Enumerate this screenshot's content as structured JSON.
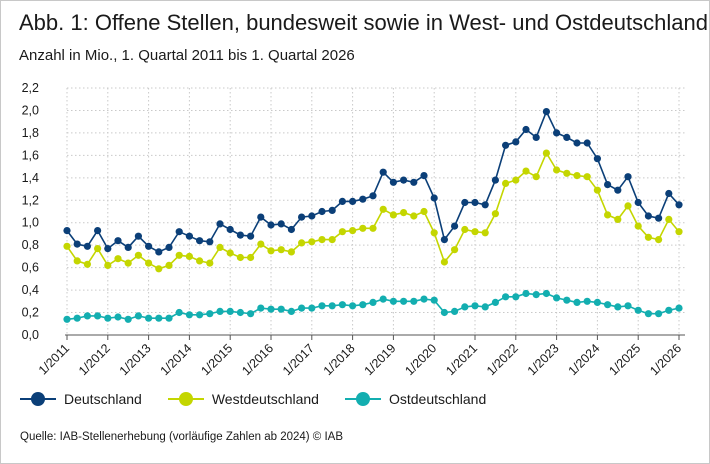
{
  "title": "Abb. 1: Offene Stellen, bundesweit sowie in West- und Ostdeutschland",
  "subtitle": "Anzahl in Mio., 1. Quartal 2011 bis 1. Quartal 2026",
  "source": "Quelle: IAB-Stellenerhebung (vorläufige Zahlen ab 2024) © IAB",
  "colors": {
    "Deutschland": "#0b3f78",
    "Westdeutschland": "#c4d600",
    "Ostdeutschland": "#13aeb0"
  },
  "chart_data": {
    "type": "line",
    "x_tick_labels": [
      "1/2011",
      "1/2012",
      "1/2013",
      "1/2014",
      "1/2015",
      "1/2016",
      "1/2017",
      "1/2018",
      "1/2019",
      "1/2020",
      "1/2021",
      "1/2022",
      "1/2023",
      "1/2024",
      "1/2025",
      "1/2026"
    ],
    "y_tick_labels": [
      "0,0",
      "0,2",
      "0,4",
      "0,6",
      "0,8",
      "1,0",
      "1,2",
      "1,4",
      "1,6",
      "1,8",
      "2,0",
      "2,2"
    ],
    "ylim": [
      0,
      2.2
    ],
    "grid": true,
    "legend_position": "bottom",
    "series": [
      {
        "name": "Deutschland",
        "values": [
          0.93,
          0.81,
          0.79,
          0.93,
          0.77,
          0.84,
          0.78,
          0.88,
          0.79,
          0.74,
          0.78,
          0.92,
          0.88,
          0.84,
          0.83,
          0.99,
          0.94,
          0.89,
          0.88,
          1.05,
          0.98,
          0.99,
          0.94,
          1.05,
          1.06,
          1.1,
          1.11,
          1.19,
          1.19,
          1.21,
          1.24,
          1.45,
          1.36,
          1.38,
          1.36,
          1.42,
          1.22,
          0.85,
          0.97,
          1.18,
          1.18,
          1.16,
          1.38,
          1.69,
          1.72,
          1.83,
          1.76,
          1.99,
          1.8,
          1.76,
          1.71,
          1.71,
          1.57,
          1.34,
          1.29,
          1.41,
          1.18,
          1.06,
          1.04,
          1.26,
          1.16
        ]
      },
      {
        "name": "Westdeutschland",
        "values": [
          0.79,
          0.66,
          0.63,
          0.77,
          0.62,
          0.68,
          0.64,
          0.71,
          0.64,
          0.59,
          0.62,
          0.71,
          0.7,
          0.66,
          0.64,
          0.78,
          0.73,
          0.69,
          0.69,
          0.81,
          0.75,
          0.76,
          0.74,
          0.82,
          0.83,
          0.85,
          0.85,
          0.92,
          0.93,
          0.95,
          0.95,
          1.12,
          1.07,
          1.09,
          1.06,
          1.1,
          0.91,
          0.65,
          0.76,
          0.94,
          0.92,
          0.91,
          1.08,
          1.35,
          1.38,
          1.46,
          1.41,
          1.62,
          1.47,
          1.44,
          1.42,
          1.41,
          1.29,
          1.07,
          1.03,
          1.15,
          0.97,
          0.87,
          0.85,
          1.03,
          0.92
        ]
      },
      {
        "name": "Ostdeutschland",
        "values": [
          0.14,
          0.15,
          0.17,
          0.17,
          0.15,
          0.16,
          0.14,
          0.17,
          0.15,
          0.15,
          0.15,
          0.2,
          0.18,
          0.18,
          0.19,
          0.21,
          0.21,
          0.2,
          0.19,
          0.24,
          0.23,
          0.23,
          0.21,
          0.24,
          0.24,
          0.26,
          0.26,
          0.27,
          0.26,
          0.27,
          0.29,
          0.32,
          0.3,
          0.3,
          0.3,
          0.32,
          0.31,
          0.2,
          0.21,
          0.25,
          0.26,
          0.25,
          0.29,
          0.34,
          0.34,
          0.37,
          0.36,
          0.37,
          0.33,
          0.31,
          0.29,
          0.3,
          0.29,
          0.27,
          0.25,
          0.26,
          0.22,
          0.19,
          0.19,
          0.22,
          0.24
        ]
      }
    ]
  }
}
